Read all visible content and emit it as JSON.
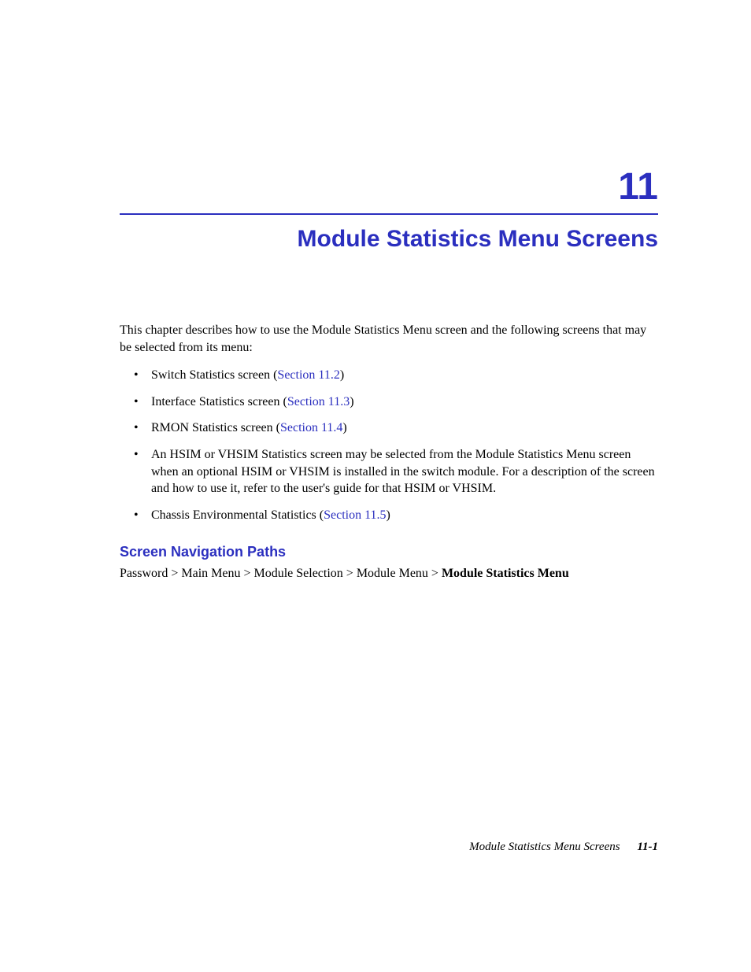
{
  "colors": {
    "accent": "#2b2fbf",
    "text": "#000000",
    "background": "#ffffff"
  },
  "typography": {
    "body_font": "Times New Roman",
    "heading_font": "Arial",
    "body_size_pt": 12,
    "chapter_number_size_pt": 36,
    "chapter_title_size_pt": 22,
    "section_heading_size_pt": 14
  },
  "chapter": {
    "number": "11",
    "title": "Module Statistics Menu Screens"
  },
  "intro_text": "This chapter describes how to use the Module Statistics Menu screen and the following screens that may be selected from its menu:",
  "bullets": [
    {
      "prefix": "Switch Statistics screen (",
      "link": "Section 11.2",
      "suffix": ")"
    },
    {
      "prefix": "Interface Statistics screen (",
      "link": "Section 11.3",
      "suffix": ")"
    },
    {
      "prefix": "RMON Statistics screen (",
      "link": "Section 11.4",
      "suffix": ")"
    },
    {
      "prefix": "An HSIM or VHSIM Statistics screen may be selected from the Module Statistics Menu screen when an optional HSIM or VHSIM is installed in the switch module. For a description of the screen and how to use it, refer to the user's guide for that HSIM or VHSIM.",
      "link": "",
      "suffix": ""
    },
    {
      "prefix": "Chassis Environmental Statistics (",
      "link": "Section 11.5",
      "suffix": ")"
    }
  ],
  "section": {
    "heading": "Screen Navigation Paths",
    "nav_path_prefix": "Password > Main Menu > Module Selection > Module Menu > ",
    "nav_path_bold": "Module Statistics Menu"
  },
  "footer": {
    "title": "Module Statistics Menu Screens",
    "page": "11-1"
  }
}
